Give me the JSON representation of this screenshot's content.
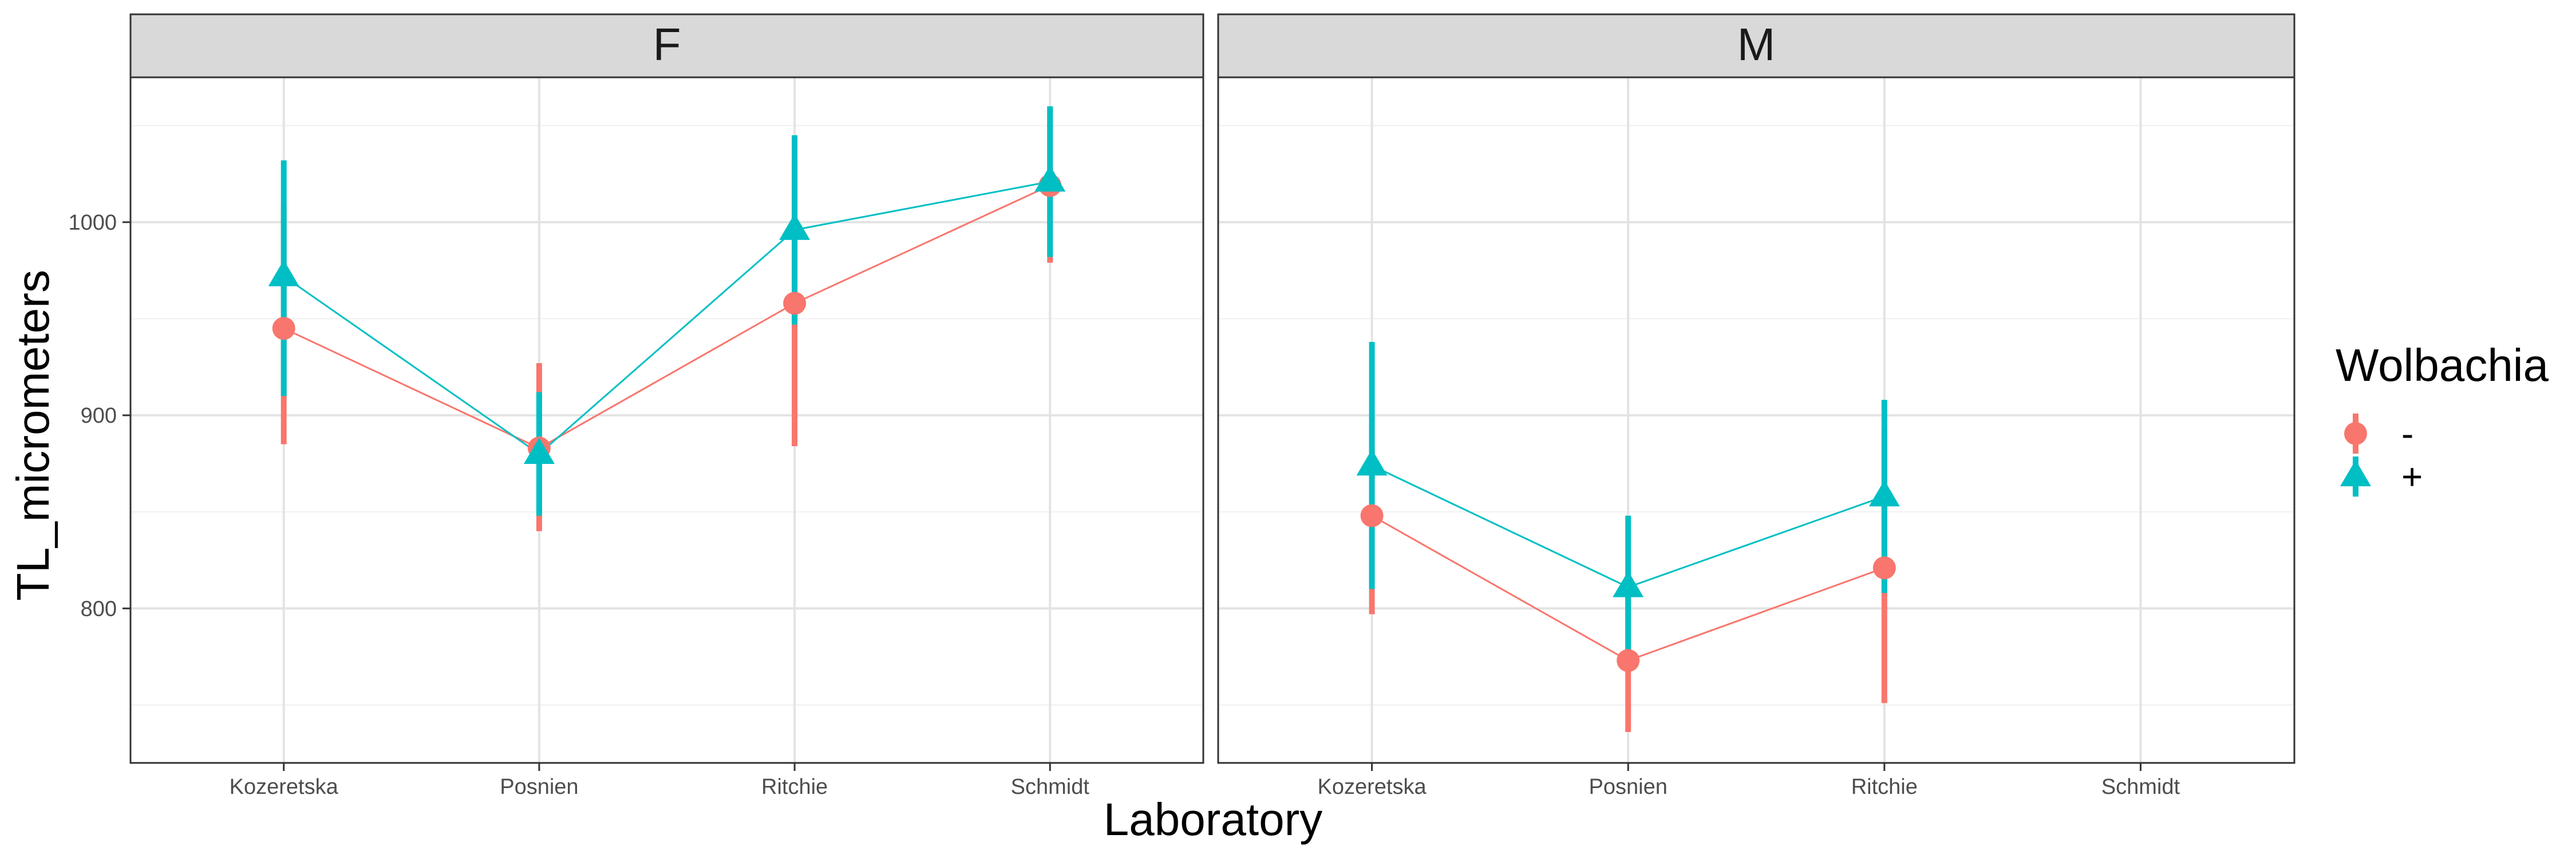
{
  "chart_data": {
    "type": "line",
    "xlabel": "Laboratory",
    "ylabel": "TL_micrometers",
    "categories": [
      "Kozeretska",
      "Posnien",
      "Ritchie",
      "Schmidt"
    ],
    "ylim": [
      720,
      1075
    ],
    "yticks": [
      800,
      900,
      1000
    ],
    "grid": true,
    "legend": {
      "title": "Wolbachia",
      "position": "right",
      "entries": [
        {
          "label": "-",
          "color": "#F8766D",
          "shape": "circle"
        },
        {
          "label": "+",
          "color": "#00BFC4",
          "shape": "triangle"
        }
      ]
    },
    "panels": [
      {
        "label": "F",
        "series": [
          {
            "name": "-",
            "color": "#F8766D",
            "shape": "circle",
            "points": [
              {
                "x": "Kozeretska",
                "y": 945,
                "low": 885,
                "high": 1008
              },
              {
                "x": "Posnien",
                "y": 883,
                "low": 840,
                "high": 927
              },
              {
                "x": "Ritchie",
                "y": 958,
                "low": 884,
                "high": 1032
              },
              {
                "x": "Schmidt",
                "y": 1019,
                "low": 979,
                "high": 1060
              }
            ]
          },
          {
            "name": "+",
            "color": "#00BFC4",
            "shape": "triangle",
            "points": [
              {
                "x": "Kozeretska",
                "y": 972,
                "low": 910,
                "high": 1032
              },
              {
                "x": "Posnien",
                "y": 880,
                "low": 848,
                "high": 912
              },
              {
                "x": "Ritchie",
                "y": 996,
                "low": 947,
                "high": 1045
              },
              {
                "x": "Schmidt",
                "y": 1021,
                "low": 982,
                "high": 1060
              }
            ]
          }
        ]
      },
      {
        "label": "M",
        "series": [
          {
            "name": "-",
            "color": "#F8766D",
            "shape": "circle",
            "points": [
              {
                "x": "Kozeretska",
                "y": 848,
                "low": 797,
                "high": 899
              },
              {
                "x": "Posnien",
                "y": 773,
                "low": 736,
                "high": 810
              },
              {
                "x": "Ritchie",
                "y": 821,
                "low": 751,
                "high": 892
              }
            ]
          },
          {
            "name": "+",
            "color": "#00BFC4",
            "shape": "triangle",
            "points": [
              {
                "x": "Kozeretska",
                "y": 874,
                "low": 810,
                "high": 938
              },
              {
                "x": "Posnien",
                "y": 811,
                "low": 773,
                "high": 848
              },
              {
                "x": "Ritchie",
                "y": 858,
                "low": 808,
                "high": 908
              }
            ]
          }
        ]
      }
    ]
  }
}
